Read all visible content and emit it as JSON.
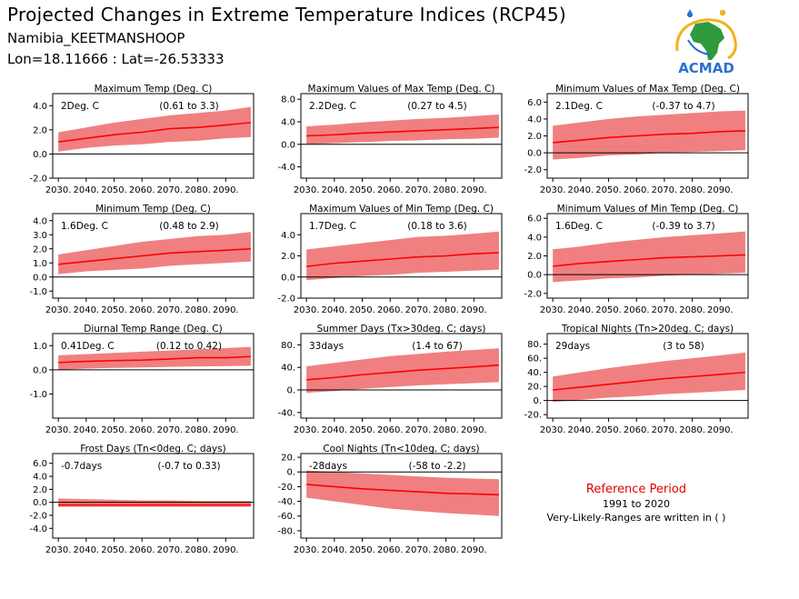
{
  "header": {
    "title": "Projected Changes in Extreme Temperature Indices (RCP45)",
    "location": "Namibia_KEETMANSHOOP",
    "coords": "Lon=18.11666 : Lat=-26.53333"
  },
  "logo": {
    "text": "ACMAD",
    "icon": "africa-globe-logo"
  },
  "colors": {
    "band": "#f08080",
    "line": "#ff0000",
    "axis": "#000000",
    "ref_title": "#e00000"
  },
  "reference": {
    "title": "Reference Period",
    "period": "1991 to 2020",
    "note": "Very-Likely-Ranges are written in ( )"
  },
  "chart_data": [
    {
      "id": "maxtemp",
      "type": "area",
      "title": "Maximum Temp (Deg. C)",
      "summary": "2Deg. C",
      "range": "(0.61 to 3.3)",
      "ylim": [
        -2.0,
        5.0
      ],
      "yticks": [
        -2.0,
        0.0,
        2.0,
        4.0
      ],
      "yticklabels": [
        "-2.0",
        "0.0",
        "2.0",
        "4.0"
      ],
      "xticks": [
        2030,
        2040,
        2050,
        2060,
        2070,
        2080,
        2090
      ],
      "xticklabels": [
        "2030.",
        "2040.",
        "2050.",
        "2060.",
        "2070.",
        "2080.",
        "2090."
      ],
      "x": [
        2030,
        2040,
        2050,
        2060,
        2070,
        2080,
        2090,
        2099
      ],
      "median": [
        1.0,
        1.3,
        1.6,
        1.8,
        2.1,
        2.2,
        2.4,
        2.6
      ],
      "lower": [
        0.2,
        0.5,
        0.7,
        0.8,
        1.0,
        1.1,
        1.3,
        1.4
      ],
      "upper": [
        1.8,
        2.2,
        2.6,
        2.9,
        3.2,
        3.4,
        3.6,
        3.9
      ]
    },
    {
      "id": "txx",
      "type": "area",
      "title": "Maximum Values of Max Temp (Deg. C)",
      "summary": "2.2Deg. C",
      "range": "(0.27 to 4.5)",
      "ylim": [
        -6.0,
        9.0
      ],
      "yticks": [
        -4.0,
        0.0,
        4.0,
        8.0
      ],
      "yticklabels": [
        "-4.0",
        "0.0",
        "4.0",
        "8.0"
      ],
      "xticks": [
        2030,
        2040,
        2050,
        2060,
        2070,
        2080,
        2090
      ],
      "xticklabels": [
        "2030.",
        "2040.",
        "2050.",
        "2060.",
        "2070.",
        "2080.",
        "2090."
      ],
      "x": [
        2030,
        2040,
        2050,
        2060,
        2070,
        2080,
        2090,
        2099
      ],
      "median": [
        1.5,
        1.7,
        2.0,
        2.2,
        2.4,
        2.6,
        2.8,
        3.0
      ],
      "lower": [
        0.0,
        0.2,
        0.4,
        0.6,
        0.7,
        0.9,
        1.0,
        1.2
      ],
      "upper": [
        3.2,
        3.5,
        3.9,
        4.2,
        4.5,
        4.7,
        5.0,
        5.3
      ]
    },
    {
      "id": "txn",
      "type": "area",
      "title": "Minimum Values of Max Temp (Deg. C)",
      "summary": "2.1Deg. C",
      "range": "(-0.37 to 4.7)",
      "ylim": [
        -3.0,
        7.0
      ],
      "yticks": [
        -2.0,
        0.0,
        2.0,
        4.0,
        6.0
      ],
      "yticklabels": [
        "-2.0",
        "0.0",
        "2.0",
        "4.0",
        "6.0"
      ],
      "xticks": [
        2030,
        2040,
        2050,
        2060,
        2070,
        2080,
        2090
      ],
      "xticklabels": [
        "2030.",
        "2040.",
        "2050.",
        "2060.",
        "2070.",
        "2080.",
        "2090."
      ],
      "x": [
        2030,
        2040,
        2050,
        2060,
        2070,
        2080,
        2090,
        2099
      ],
      "median": [
        1.2,
        1.5,
        1.8,
        2.0,
        2.2,
        2.3,
        2.5,
        2.6
      ],
      "lower": [
        -0.8,
        -0.6,
        -0.3,
        -0.2,
        0.0,
        0.1,
        0.2,
        0.3
      ],
      "upper": [
        3.2,
        3.6,
        4.0,
        4.3,
        4.5,
        4.7,
        4.9,
        5.0
      ]
    },
    {
      "id": "mintemp",
      "type": "area",
      "title": "Minimum Temp (Deg. C)",
      "summary": "1.6Deg. C",
      "range": "(0.48 to 2.9)",
      "ylim": [
        -1.5,
        4.5
      ],
      "yticks": [
        -1.0,
        0.0,
        1.0,
        2.0,
        3.0,
        4.0
      ],
      "yticklabels": [
        "-1.0",
        "0.0",
        "1.0",
        "2.0",
        "3.0",
        "4.0"
      ],
      "xticks": [
        2030,
        2040,
        2050,
        2060,
        2070,
        2080,
        2090
      ],
      "xticklabels": [
        "2030.",
        "2040.",
        "2050.",
        "2060.",
        "2070.",
        "2080.",
        "2090."
      ],
      "x": [
        2030,
        2040,
        2050,
        2060,
        2070,
        2080,
        2090,
        2099
      ],
      "median": [
        0.9,
        1.1,
        1.3,
        1.5,
        1.7,
        1.8,
        1.9,
        2.0
      ],
      "lower": [
        0.2,
        0.4,
        0.5,
        0.6,
        0.8,
        0.9,
        1.0,
        1.1
      ],
      "upper": [
        1.6,
        1.9,
        2.2,
        2.5,
        2.7,
        2.9,
        3.0,
        3.2
      ]
    },
    {
      "id": "tnx",
      "type": "area",
      "title": "Maximum Values of Min Temp (Deg. C)",
      "summary": "1.7Deg. C",
      "range": "(0.18 to 3.6)",
      "ylim": [
        -2.0,
        6.0
      ],
      "yticks": [
        -2.0,
        0.0,
        2.0,
        4.0
      ],
      "yticklabels": [
        "-2.0",
        "0.0",
        "2.0",
        "4.0"
      ],
      "xticks": [
        2030,
        2040,
        2050,
        2060,
        2070,
        2080,
        2090
      ],
      "xticklabels": [
        "2030.",
        "2040.",
        "2050.",
        "2060.",
        "2070.",
        "2080.",
        "2090."
      ],
      "x": [
        2030,
        2040,
        2050,
        2060,
        2070,
        2080,
        2090,
        2099
      ],
      "median": [
        1.0,
        1.3,
        1.5,
        1.7,
        1.9,
        2.0,
        2.2,
        2.3
      ],
      "lower": [
        -0.3,
        -0.1,
        0.1,
        0.2,
        0.4,
        0.5,
        0.6,
        0.7
      ],
      "upper": [
        2.6,
        2.9,
        3.2,
        3.5,
        3.8,
        3.9,
        4.1,
        4.3
      ]
    },
    {
      "id": "tnn",
      "type": "area",
      "title": "Minimum Values of Min Temp (Deg. C)",
      "summary": "1.6Deg. C",
      "range": "(-0.39 to 3.7)",
      "ylim": [
        -2.5,
        6.5
      ],
      "yticks": [
        -2.0,
        0.0,
        2.0,
        4.0,
        6.0
      ],
      "yticklabels": [
        "-2.0",
        "0.0",
        "2.0",
        "4.0",
        "6.0"
      ],
      "xticks": [
        2030,
        2040,
        2050,
        2060,
        2070,
        2080,
        2090
      ],
      "xticklabels": [
        "2030.",
        "2040.",
        "2050.",
        "2060.",
        "2070.",
        "2080.",
        "2090."
      ],
      "x": [
        2030,
        2040,
        2050,
        2060,
        2070,
        2080,
        2090,
        2099
      ],
      "median": [
        0.9,
        1.2,
        1.4,
        1.6,
        1.8,
        1.9,
        2.0,
        2.1
      ],
      "lower": [
        -0.8,
        -0.6,
        -0.4,
        -0.3,
        -0.1,
        0.0,
        0.1,
        0.2
      ],
      "upper": [
        2.7,
        3.0,
        3.4,
        3.7,
        4.0,
        4.2,
        4.4,
        4.6
      ]
    },
    {
      "id": "dtr",
      "type": "area",
      "title": "Diurnal Temp Range (Deg. C)",
      "summary": "0.41Deg. C",
      "range": "(0.12 to 0.42)",
      "ylim": [
        -2.0,
        1.5
      ],
      "yticks": [
        -1.0,
        0.0,
        1.0
      ],
      "yticklabels": [
        "-1.0",
        "0.0",
        "1.0"
      ],
      "xticks": [
        2030,
        2040,
        2050,
        2060,
        2070,
        2080,
        2090
      ],
      "xticklabels": [
        "2030.",
        "2040.",
        "2050.",
        "2060.",
        "2070.",
        "2080.",
        "2090."
      ],
      "x": [
        2030,
        2040,
        2050,
        2060,
        2070,
        2080,
        2090,
        2099
      ],
      "median": [
        0.3,
        0.35,
        0.38,
        0.4,
        0.45,
        0.5,
        0.5,
        0.55
      ],
      "lower": [
        0.0,
        0.05,
        0.08,
        0.1,
        0.12,
        0.14,
        0.15,
        0.17
      ],
      "upper": [
        0.6,
        0.65,
        0.7,
        0.75,
        0.8,
        0.85,
        0.9,
        0.95
      ]
    },
    {
      "id": "su",
      "type": "area",
      "title": "Summer Days (Tx>30deg. C; days)",
      "summary": "33days",
      "range": "(1.4 to 67)",
      "ylim": [
        -50,
        100
      ],
      "yticks": [
        -40,
        0,
        40,
        80
      ],
      "yticklabels": [
        "-40.",
        "0.",
        "40.",
        "80."
      ],
      "xticks": [
        2030,
        2040,
        2050,
        2060,
        2070,
        2080,
        2090
      ],
      "xticklabels": [
        "2030.",
        "2040.",
        "2050.",
        "2060.",
        "2070.",
        "2080.",
        "2090."
      ],
      "x": [
        2030,
        2040,
        2050,
        2060,
        2070,
        2080,
        2090,
        2099
      ],
      "median": [
        18,
        22,
        27,
        31,
        35,
        38,
        41,
        44
      ],
      "lower": [
        -5,
        -2,
        2,
        5,
        8,
        10,
        12,
        14
      ],
      "upper": [
        42,
        48,
        54,
        60,
        64,
        68,
        71,
        74
      ]
    },
    {
      "id": "tr",
      "type": "area",
      "title": "Tropical Nights (Tn>20deg. C; days)",
      "summary": "29days",
      "range": "(3 to 58)",
      "ylim": [
        -25,
        95
      ],
      "yticks": [
        -20,
        0,
        20,
        40,
        60,
        80
      ],
      "yticklabels": [
        "-20.",
        "0.",
        "20.",
        "40.",
        "60.",
        "80."
      ],
      "xticks": [
        2030,
        2040,
        2050,
        2060,
        2070,
        2080,
        2090
      ],
      "xticklabels": [
        "2030.",
        "2040.",
        "2050.",
        "2060.",
        "2070.",
        "2080.",
        "2090."
      ],
      "x": [
        2030,
        2040,
        2050,
        2060,
        2070,
        2080,
        2090,
        2099
      ],
      "median": [
        15,
        19,
        23,
        27,
        31,
        34,
        37,
        40
      ],
      "lower": [
        -2,
        1,
        4,
        6,
        9,
        11,
        13,
        15
      ],
      "upper": [
        34,
        40,
        46,
        51,
        56,
        60,
        64,
        68
      ]
    },
    {
      "id": "fd",
      "type": "area",
      "title": "Frost Days (Tn<0deg. C; days)",
      "summary": "-0.7days",
      "range": "(-0.7 to 0.33)",
      "ylim": [
        -5.5,
        7.5
      ],
      "yticks": [
        -4.0,
        -2.0,
        0.0,
        2.0,
        4.0,
        6.0
      ],
      "yticklabels": [
        "-4.0",
        "-2.0",
        "0.0",
        "2.0",
        "4.0",
        "6.0"
      ],
      "xticks": [
        2030,
        2040,
        2050,
        2060,
        2070,
        2080,
        2090
      ],
      "xticklabels": [
        "2030.",
        "2040.",
        "2050.",
        "2060.",
        "2070.",
        "2080.",
        "2090."
      ],
      "x": [
        2030,
        2040,
        2050,
        2060,
        2070,
        2080,
        2090,
        2099
      ],
      "median": [
        -0.4,
        -0.4,
        -0.4,
        -0.4,
        -0.4,
        -0.4,
        -0.4,
        -0.4
      ],
      "lower": [
        -0.7,
        -0.7,
        -0.7,
        -0.7,
        -0.7,
        -0.7,
        -0.7,
        -0.7
      ],
      "upper": [
        0.6,
        0.5,
        0.4,
        0.3,
        0.3,
        0.2,
        0.2,
        0.2
      ]
    },
    {
      "id": "cn",
      "type": "area",
      "title": "Cool Nights (Tn<10deg. C; days)",
      "summary": "-28days",
      "range": "(-58 to -2.2)",
      "ylim": [
        -90,
        25
      ],
      "yticks": [
        -80,
        -60,
        -40,
        -20,
        0,
        20
      ],
      "yticklabels": [
        "-80.",
        "-60.",
        "-40.",
        "-20.",
        "0.",
        "20."
      ],
      "xticks": [
        2030,
        2040,
        2050,
        2060,
        2070,
        2080,
        2090
      ],
      "xticklabels": [
        "2030.",
        "2040.",
        "2050.",
        "2060.",
        "2070.",
        "2080.",
        "2090."
      ],
      "x": [
        2030,
        2040,
        2050,
        2060,
        2070,
        2080,
        2090,
        2099
      ],
      "median": [
        -17,
        -20,
        -23,
        -25,
        -27,
        -29,
        -30,
        -31
      ],
      "lower": [
        -35,
        -40,
        -45,
        -50,
        -53,
        -56,
        -58,
        -60
      ],
      "upper": [
        2,
        0,
        -2,
        -4,
        -6,
        -8,
        -9,
        -10
      ]
    }
  ]
}
